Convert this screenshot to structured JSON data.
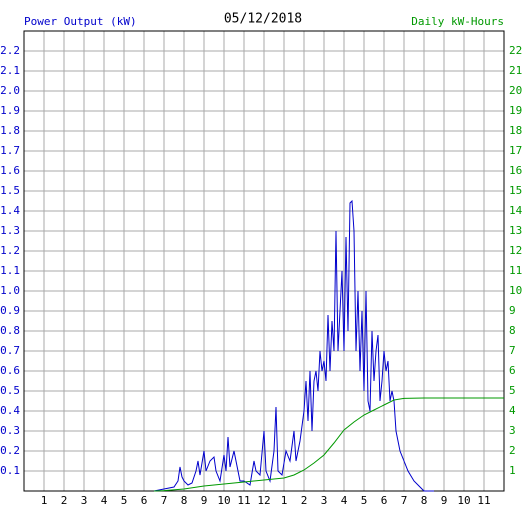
{
  "chart_data": {
    "type": "line",
    "title": "05/12/2018",
    "ylabel": "Power Output (kW)",
    "y2label": "Daily kW-Hours",
    "grid": true,
    "xlim": [
      0,
      24
    ],
    "xticks": [
      1,
      2,
      3,
      4,
      5,
      6,
      7,
      8,
      9,
      10,
      11,
      12,
      {
        "value": 13,
        "label": "1"
      },
      {
        "value": 14,
        "label": "2"
      },
      {
        "value": 15,
        "label": "3"
      },
      {
        "value": 16,
        "label": "4"
      },
      {
        "value": 17,
        "label": "5"
      },
      {
        "value": 18,
        "label": "6"
      },
      {
        "value": 19,
        "label": "7"
      },
      {
        "value": 20,
        "label": "8"
      },
      {
        "value": 21,
        "label": "9"
      },
      {
        "value": 22,
        "label": "10"
      },
      {
        "value": 23,
        "label": "11"
      }
    ],
    "ylim": [
      0,
      2.3
    ],
    "yticks": [
      0.1,
      0.2,
      0.3,
      0.4,
      0.5,
      0.6,
      0.7,
      0.8,
      0.9,
      {
        "value": 1,
        "label": "1.0"
      },
      1.1,
      1.2,
      1.3,
      1.4,
      1.5,
      1.6,
      1.7,
      1.8,
      1.9,
      {
        "value": 2,
        "label": "2.0"
      },
      2.1,
      2.2
    ],
    "y2lim": [
      0,
      23
    ],
    "y2ticks": [
      1,
      2,
      3,
      4,
      5,
      6,
      7,
      8,
      9,
      10,
      11,
      12,
      13,
      14,
      15,
      16,
      17,
      18,
      19,
      20,
      21,
      22
    ],
    "series": [
      {
        "name": "Power Output (kW)",
        "color": "#0000cc",
        "x": [
          6.5,
          7,
          7.5,
          7.7,
          7.8,
          7.9,
          8.0,
          8.2,
          8.4,
          8.6,
          8.7,
          8.8,
          9.0,
          9.1,
          9.3,
          9.5,
          9.6,
          9.8,
          10.0,
          10.1,
          10.2,
          10.3,
          10.5,
          10.6,
          10.8,
          11.0,
          11.3,
          11.5,
          11.6,
          11.8,
          12.0,
          12.1,
          12.3,
          12.5,
          12.6,
          12.7,
          12.9,
          13.1,
          13.3,
          13.5,
          13.6,
          13.8,
          14.0,
          14.1,
          14.2,
          14.3,
          14.4,
          14.5,
          14.6,
          14.7,
          14.8,
          14.9,
          15.0,
          15.1,
          15.2,
          15.3,
          15.4,
          15.5,
          15.6,
          15.7,
          15.8,
          15.9,
          16.0,
          16.1,
          16.2,
          16.3,
          16.4,
          16.5,
          16.6,
          16.7,
          16.8,
          16.9,
          17.0,
          17.1,
          17.2,
          17.3,
          17.4,
          17.5,
          17.6,
          17.7,
          17.8,
          17.9,
          18.0,
          18.1,
          18.2,
          18.3,
          18.4,
          18.5,
          18.6,
          18.8,
          19.0,
          19.2,
          19.5,
          19.8,
          20.0,
          20.5
        ],
        "values": [
          0,
          0.01,
          0.02,
          0.05,
          0.12,
          0.07,
          0.05,
          0.03,
          0.04,
          0.1,
          0.15,
          0.08,
          0.2,
          0.1,
          0.15,
          0.17,
          0.1,
          0.05,
          0.18,
          0.1,
          0.27,
          0.12,
          0.2,
          0.15,
          0.05,
          0.05,
          0.03,
          0.15,
          0.1,
          0.08,
          0.3,
          0.1,
          0.05,
          0.2,
          0.42,
          0.1,
          0.08,
          0.2,
          0.15,
          0.3,
          0.15,
          0.25,
          0.4,
          0.55,
          0.35,
          0.6,
          0.3,
          0.55,
          0.6,
          0.5,
          0.7,
          0.6,
          0.65,
          0.55,
          0.88,
          0.6,
          0.85,
          0.7,
          1.3,
          0.7,
          0.9,
          1.1,
          0.7,
          1.27,
          0.8,
          1.44,
          1.45,
          1.3,
          0.7,
          1.0,
          0.6,
          0.9,
          0.5,
          1.0,
          0.45,
          0.4,
          0.8,
          0.55,
          0.7,
          0.78,
          0.45,
          0.55,
          0.7,
          0.6,
          0.65,
          0.45,
          0.5,
          0.45,
          0.3,
          0.2,
          0.15,
          0.1,
          0.05,
          0.02,
          0,
          0
        ]
      },
      {
        "name": "Daily kW-Hours",
        "color": "#009900",
        "axis": "y2",
        "x": [
          6.5,
          7,
          8,
          9,
          10,
          11,
          12,
          13,
          13.5,
          14,
          14.5,
          15,
          15.5,
          16,
          16.5,
          17,
          17.5,
          18,
          18.5,
          19,
          20,
          24
        ],
        "values": [
          0,
          0.02,
          0.1,
          0.25,
          0.35,
          0.45,
          0.55,
          0.65,
          0.8,
          1.05,
          1.4,
          1.8,
          2.4,
          3.05,
          3.45,
          3.8,
          4.05,
          4.3,
          4.55,
          4.63,
          4.65,
          4.65
        ]
      }
    ]
  }
}
